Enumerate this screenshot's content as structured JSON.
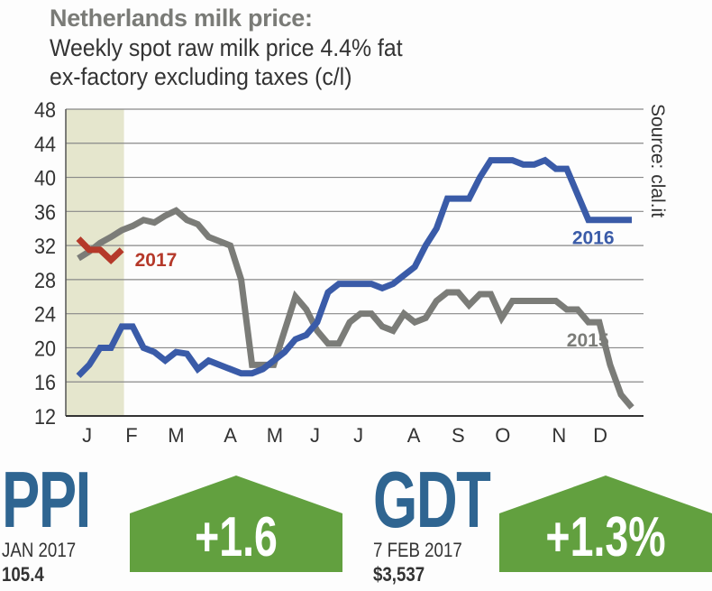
{
  "title": "Netherlands milk price:",
  "subtitle_line1": "Weekly spot raw milk price 4.4% fat",
  "subtitle_line2": "ex-factory excluding taxes (c/l)",
  "source": "Source: clal.it",
  "chart_data": {
    "type": "line",
    "title": "Netherlands milk price: Weekly spot raw milk price 4.4% fat ex-factory excluding taxes (c/l)",
    "xlabel": "",
    "ylabel": "c/l",
    "ylim": [
      12,
      48
    ],
    "yticks": [
      12,
      16,
      20,
      24,
      28,
      32,
      36,
      40,
      44,
      48
    ],
    "x_unit": "week",
    "xlim": [
      0,
      53
    ],
    "month_labels": [
      {
        "label": "J",
        "week": 1.8
      },
      {
        "label": "F",
        "week": 5.9
      },
      {
        "label": "M",
        "week": 10
      },
      {
        "label": "A",
        "week": 15
      },
      {
        "label": "M",
        "week": 19.1
      },
      {
        "label": "J",
        "week": 22.8
      },
      {
        "label": "J",
        "week": 26.8
      },
      {
        "label": "A",
        "week": 31.9
      },
      {
        "label": "S",
        "week": 36
      },
      {
        "label": "O",
        "week": 40.1
      },
      {
        "label": "N",
        "week": 45.3
      },
      {
        "label": "D",
        "week": 49.1
      }
    ],
    "highlight_weeks": [
      0,
      5.2
    ],
    "grid": true,
    "series": [
      {
        "name": "2015",
        "color": "#7b7c78",
        "values": [
          30.5,
          31.3,
          32.3,
          33,
          33.8,
          34.3,
          35,
          34.7,
          35.5,
          36.1,
          35,
          34.5,
          33,
          32.5,
          32,
          28,
          18,
          18,
          18,
          22,
          26,
          24.5,
          22,
          20.5,
          20.5,
          23,
          24,
          24,
          22.5,
          22,
          24,
          23,
          23.5,
          25.5,
          26.5,
          26.5,
          25,
          26.3,
          26.3,
          23.5,
          25.5,
          25.5,
          25.5,
          25.5,
          25.5,
          24.5,
          24.5,
          23,
          23,
          18,
          14.5,
          13
        ],
        "label_week": 46,
        "label_value": 21
      },
      {
        "name": "2016",
        "color": "#3a5ba8",
        "values": [
          16.7,
          18,
          20,
          20,
          22.5,
          22.5,
          20,
          19.5,
          18.5,
          19.5,
          19.3,
          17.5,
          18.5,
          18,
          17.5,
          17,
          17,
          17.5,
          18.5,
          19.5,
          21,
          21.5,
          23,
          26.5,
          27.5,
          27.5,
          27.5,
          27.5,
          27,
          27.5,
          28.5,
          29.5,
          32,
          34,
          37.5,
          37.5,
          37.5,
          40,
          42,
          42,
          42,
          41.5,
          41.5,
          42,
          41,
          41,
          38,
          35,
          35,
          35,
          35,
          35
        ],
        "label_week": 46.5,
        "label_value": 33
      },
      {
        "name": "2017",
        "color": "#b5392a",
        "values": [
          32.8,
          31.5,
          31.5,
          30.3,
          31.5
        ],
        "label_week": 6.2,
        "label_value": 30.4
      }
    ]
  },
  "ppi": {
    "label": "PPI",
    "date": "JAN 2017",
    "value": "105.4",
    "change": "+1.6"
  },
  "gdt": {
    "label": "GDT",
    "date": "7 FEB 2017",
    "value": "$3,537",
    "change": "+1.3%"
  },
  "colors": {
    "green": "#62a03f",
    "heading_blue": "#2f6591",
    "band": "#e5e6cd"
  }
}
